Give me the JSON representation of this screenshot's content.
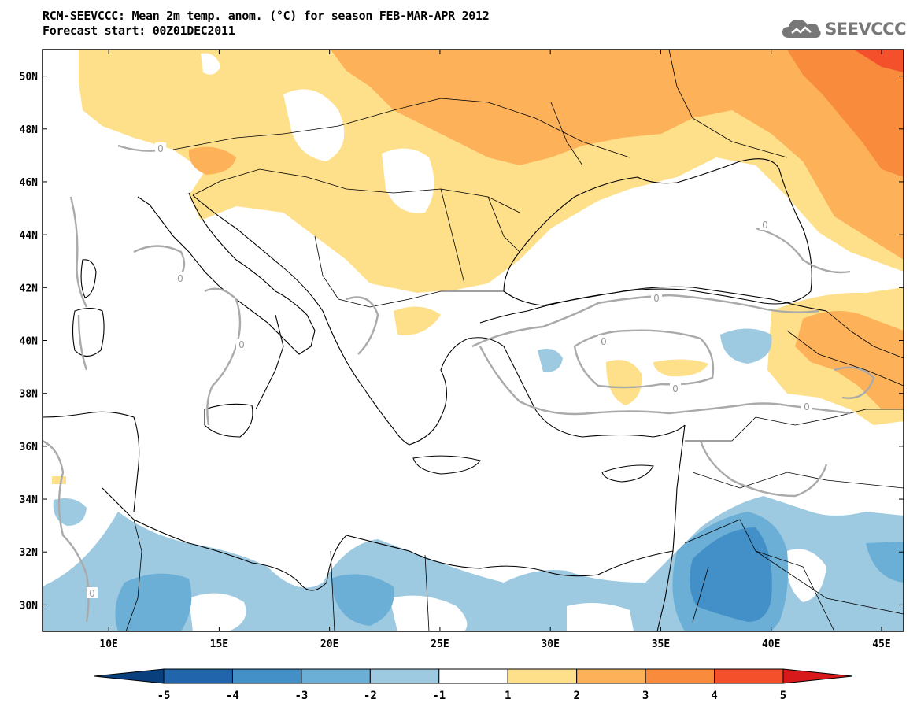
{
  "header": {
    "title_line1": "RCM-SEEVCCC: Mean 2m temp. anom. (°C) for season FEB-MAR-APR 2012",
    "title_line2": "Forecast start: 00Z01DEC2011"
  },
  "logo": {
    "text": "SEEVCCC",
    "icon": "cloud-logo-icon",
    "color": "#777777"
  },
  "map": {
    "lon_range": [
      7,
      46
    ],
    "lat_range": [
      29,
      51
    ],
    "lat_labels": [
      "50N",
      "48N",
      "46N",
      "44N",
      "42N",
      "40N",
      "38N",
      "36N",
      "34N",
      "32N",
      "30N"
    ],
    "lat_values": [
      50,
      48,
      46,
      44,
      42,
      40,
      38,
      36,
      34,
      32,
      30
    ],
    "lon_labels": [
      "10E",
      "15E",
      "20E",
      "25E",
      "30E",
      "35E",
      "40E",
      "45E"
    ],
    "lon_values": [
      10,
      15,
      20,
      25,
      30,
      35,
      40,
      45
    ],
    "contour_label": "0",
    "contour_color": "#aaaaaa"
  },
  "colorbar": {
    "labels": [
      "-5",
      "-4",
      "-3",
      "-2",
      "-1",
      "1",
      "2",
      "3",
      "4",
      "5"
    ],
    "colors": [
      "#0a3f7d",
      "#2166ac",
      "#4390c8",
      "#6baed6",
      "#9ecae1",
      "#ffffff",
      "#fee08b",
      "#fdb25a",
      "#f98b3d",
      "#f4502c",
      "#d7191c"
    ]
  }
}
